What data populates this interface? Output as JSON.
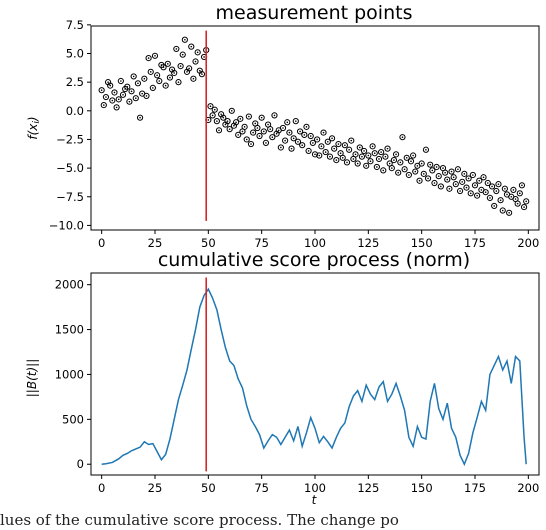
{
  "chart_data": [
    {
      "type": "scatter",
      "title": "measurement points",
      "ylabel": "f(x_i)",
      "xlim": [
        -5,
        205
      ],
      "ylim": [
        -10.4,
        7.4
      ],
      "xticks": [
        0,
        25,
        50,
        75,
        100,
        125,
        150,
        175,
        200
      ],
      "yticks": [
        -10.0,
        -7.5,
        -5.0,
        -2.5,
        0.0,
        2.5,
        5.0,
        7.5
      ],
      "change_point": {
        "x": 49,
        "y_from": -9.6,
        "y_to": 7.0,
        "color": "#d62728"
      },
      "points_x": [
        0,
        1,
        2,
        3,
        4,
        5,
        6,
        7,
        8,
        9,
        10,
        11,
        12,
        13,
        14,
        15,
        16,
        17,
        18,
        19,
        20,
        21,
        22,
        23,
        24,
        25,
        26,
        27,
        28,
        29,
        30,
        31,
        32,
        33,
        34,
        35,
        36,
        37,
        38,
        39,
        40,
        41,
        42,
        43,
        44,
        45,
        46,
        47,
        48,
        49,
        50,
        51,
        52,
        53,
        54,
        55,
        56,
        57,
        58,
        59,
        60,
        61,
        62,
        63,
        64,
        65,
        66,
        67,
        68,
        69,
        70,
        71,
        72,
        73,
        74,
        75,
        76,
        77,
        78,
        79,
        80,
        81,
        82,
        83,
        84,
        85,
        86,
        87,
        88,
        89,
        90,
        91,
        92,
        93,
        94,
        95,
        96,
        97,
        98,
        99,
        100,
        101,
        102,
        103,
        104,
        105,
        106,
        107,
        108,
        109,
        110,
        111,
        112,
        113,
        114,
        115,
        116,
        117,
        118,
        119,
        120,
        121,
        122,
        123,
        124,
        125,
        126,
        127,
        128,
        129,
        130,
        131,
        132,
        133,
        134,
        135,
        136,
        137,
        138,
        139,
        140,
        141,
        142,
        143,
        144,
        145,
        146,
        147,
        148,
        149,
        150,
        151,
        152,
        153,
        154,
        155,
        156,
        157,
        158,
        159,
        160,
        161,
        162,
        163,
        164,
        165,
        166,
        167,
        168,
        169,
        170,
        171,
        172,
        173,
        174,
        175,
        176,
        177,
        178,
        179,
        180,
        181,
        182,
        183,
        184,
        185,
        186,
        187,
        188,
        189,
        190,
        191,
        192,
        193,
        194,
        195,
        196,
        197,
        198,
        199
      ],
      "points_y": [
        1.8,
        0.5,
        1.2,
        2.5,
        2.2,
        0.9,
        1.6,
        0.3,
        1.0,
        2.6,
        1.4,
        1.9,
        2.1,
        0.8,
        1.7,
        3.0,
        1.1,
        2.4,
        -0.6,
        1.5,
        2.8,
        1.3,
        4.6,
        3.4,
        2.0,
        4.8,
        3.1,
        2.6,
        4.0,
        3.8,
        2.2,
        4.1,
        2.9,
        3.6,
        3.3,
        5.4,
        2.5,
        3.9,
        4.9,
        6.2,
        3.4,
        3.7,
        5.6,
        2.8,
        4.3,
        5.1,
        3.5,
        3.2,
        4.7,
        5.3,
        -0.8,
        0.4,
        -0.4,
        0.1,
        -0.9,
        -1.7,
        -0.3,
        -0.6,
        -1.2,
        -0.9,
        -1.6,
        0.0,
        -1.3,
        -1.0,
        -2.1,
        -0.7,
        -1.8,
        -1.4,
        -2.5,
        -0.5,
        -2.9,
        -1.9,
        -1.1,
        -1.5,
        -2.2,
        -0.6,
        -1.8,
        -2.8,
        -1.2,
        -1.6,
        -2.3,
        -0.4,
        -2.0,
        -1.7,
        -3.2,
        -1.5,
        -2.6,
        -1.0,
        -1.9,
        -3.3,
        -2.4,
        -0.9,
        -2.7,
        -1.8,
        -3.0,
        -2.1,
        -1.4,
        -3.5,
        -2.2,
        -2.8,
        -3.8,
        -2.5,
        -3.9,
        -3.1,
        -1.9,
        -3.6,
        -2.7,
        -4.0,
        -2.4,
        -3.3,
        -4.3,
        -2.9,
        -3.7,
        -4.1,
        -3.0,
        -4.5,
        -3.4,
        -2.6,
        -4.2,
        -3.8,
        -4.6,
        -3.2,
        -4.0,
        -3.5,
        -4.8,
        -3.9,
        -4.4,
        -3.1,
        -3.7,
        -4.9,
        -4.2,
        -3.6,
        -5.2,
        -4.0,
        -3.3,
        -4.6,
        -5.0,
        -4.3,
        -3.8,
        -5.4,
        -4.5,
        -2.3,
        -5.1,
        -4.1,
        -5.6,
        -4.4,
        -3.9,
        -5.3,
        -4.8,
        -6.1,
        -4.6,
        -5.5,
        -3.4,
        -5.9,
        -4.7,
        -5.2,
        -6.3,
        -4.9,
        -5.7,
        -6.6,
        -5.0,
        -5.4,
        -6.0,
        -6.8,
        -5.3,
        -5.8,
        -6.4,
        -5.1,
        -7.0,
        -6.2,
        -5.5,
        -6.7,
        -5.9,
        -7.2,
        -5.6,
        -6.5,
        -7.4,
        -6.1,
        -6.9,
        -5.8,
        -7.1,
        -6.3,
        -7.6,
        -6.6,
        -8.3,
        -7.0,
        -6.4,
        -7.8,
        -8.7,
        -6.8,
        -7.3,
        -8.9,
        -7.5,
        -6.9,
        -7.7,
        -8.1,
        -7.2,
        -6.5,
        -8.4,
        -7.9,
        -6.7,
        -7.4,
        -8.2,
        -6.2
      ],
      "marker": "open circle with center dot"
    },
    {
      "type": "line",
      "title": "cumulative score process (norm)",
      "xlabel": "t",
      "ylabel": "||B(t)||",
      "xlim": [
        -5,
        205
      ],
      "ylim": [
        -120,
        2130
      ],
      "xticks": [
        0,
        25,
        50,
        75,
        100,
        125,
        150,
        175,
        200
      ],
      "yticks": [
        0,
        500,
        1000,
        1500,
        2000
      ],
      "series_color": "#1f77b4",
      "change_point": {
        "x": 49,
        "y_from": -80,
        "y_to": 2080,
        "color": "#d62728"
      },
      "x": [
        0,
        2,
        5,
        8,
        10,
        12,
        14,
        16,
        18,
        20,
        22,
        24,
        26,
        28,
        30,
        32,
        34,
        36,
        38,
        40,
        42,
        44,
        46,
        48,
        50,
        52,
        54,
        56,
        58,
        60,
        62,
        64,
        66,
        68,
        70,
        72,
        74,
        76,
        78,
        80,
        82,
        84,
        86,
        88,
        90,
        92,
        94,
        96,
        98,
        100,
        102,
        104,
        106,
        108,
        110,
        112,
        114,
        116,
        118,
        120,
        122,
        124,
        126,
        128,
        130,
        132,
        134,
        136,
        138,
        140,
        142,
        144,
        146,
        148,
        150,
        152,
        154,
        156,
        158,
        160,
        162,
        164,
        166,
        168,
        170,
        172,
        174,
        176,
        178,
        180,
        182,
        184,
        186,
        188,
        190,
        192,
        194,
        196,
        198,
        199
      ],
      "y": [
        0,
        5,
        20,
        60,
        100,
        120,
        150,
        170,
        190,
        250,
        220,
        230,
        140,
        50,
        110,
        280,
        500,
        720,
        880,
        1050,
        1280,
        1500,
        1750,
        1880,
        1950,
        1850,
        1720,
        1500,
        1300,
        1150,
        1100,
        950,
        850,
        650,
        500,
        420,
        330,
        180,
        260,
        330,
        300,
        220,
        300,
        380,
        260,
        420,
        200,
        350,
        520,
        400,
        240,
        310,
        250,
        180,
        300,
        400,
        460,
        640,
        760,
        820,
        700,
        880,
        780,
        720,
        860,
        920,
        700,
        780,
        900,
        760,
        600,
        300,
        200,
        420,
        300,
        280,
        700,
        900,
        620,
        500,
        680,
        400,
        300,
        100,
        0,
        120,
        350,
        520,
        700,
        600,
        1000,
        1100,
        1200,
        1050,
        1150,
        900,
        1200,
        1150,
        300,
        0
      ]
    }
  ],
  "caption": {
    "text": "lues of the cumulative score process. The change po"
  }
}
